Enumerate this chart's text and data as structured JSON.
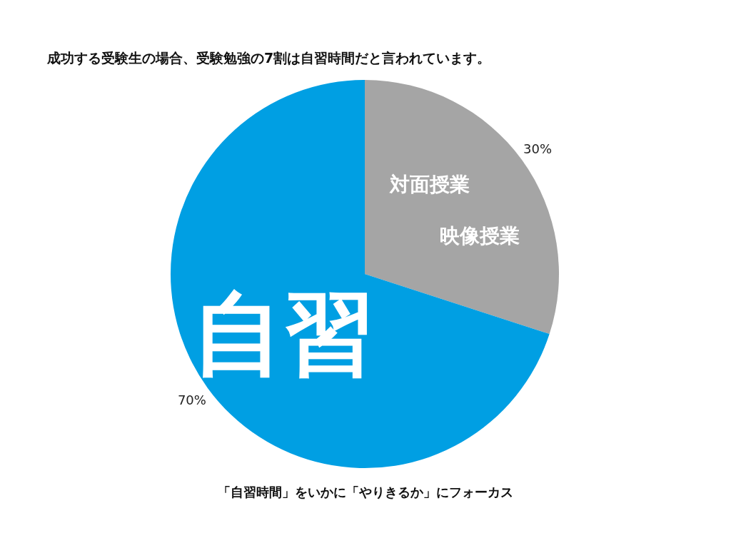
{
  "chart_data": {
    "type": "pie",
    "title": "成功する受験生の場合、受験勉強の7割は自習時間だと言われています。",
    "categories": [
      "対面授業",
      "自習"
    ],
    "values": [
      30,
      70
    ],
    "colors": [
      "#a5a5a5",
      "#009fe3"
    ],
    "value_labels": [
      "30%",
      "70%"
    ],
    "annotations": [
      "映像授業",
      "「自習時間」をいかに「やりきるか」にフォーカス"
    ]
  }
}
